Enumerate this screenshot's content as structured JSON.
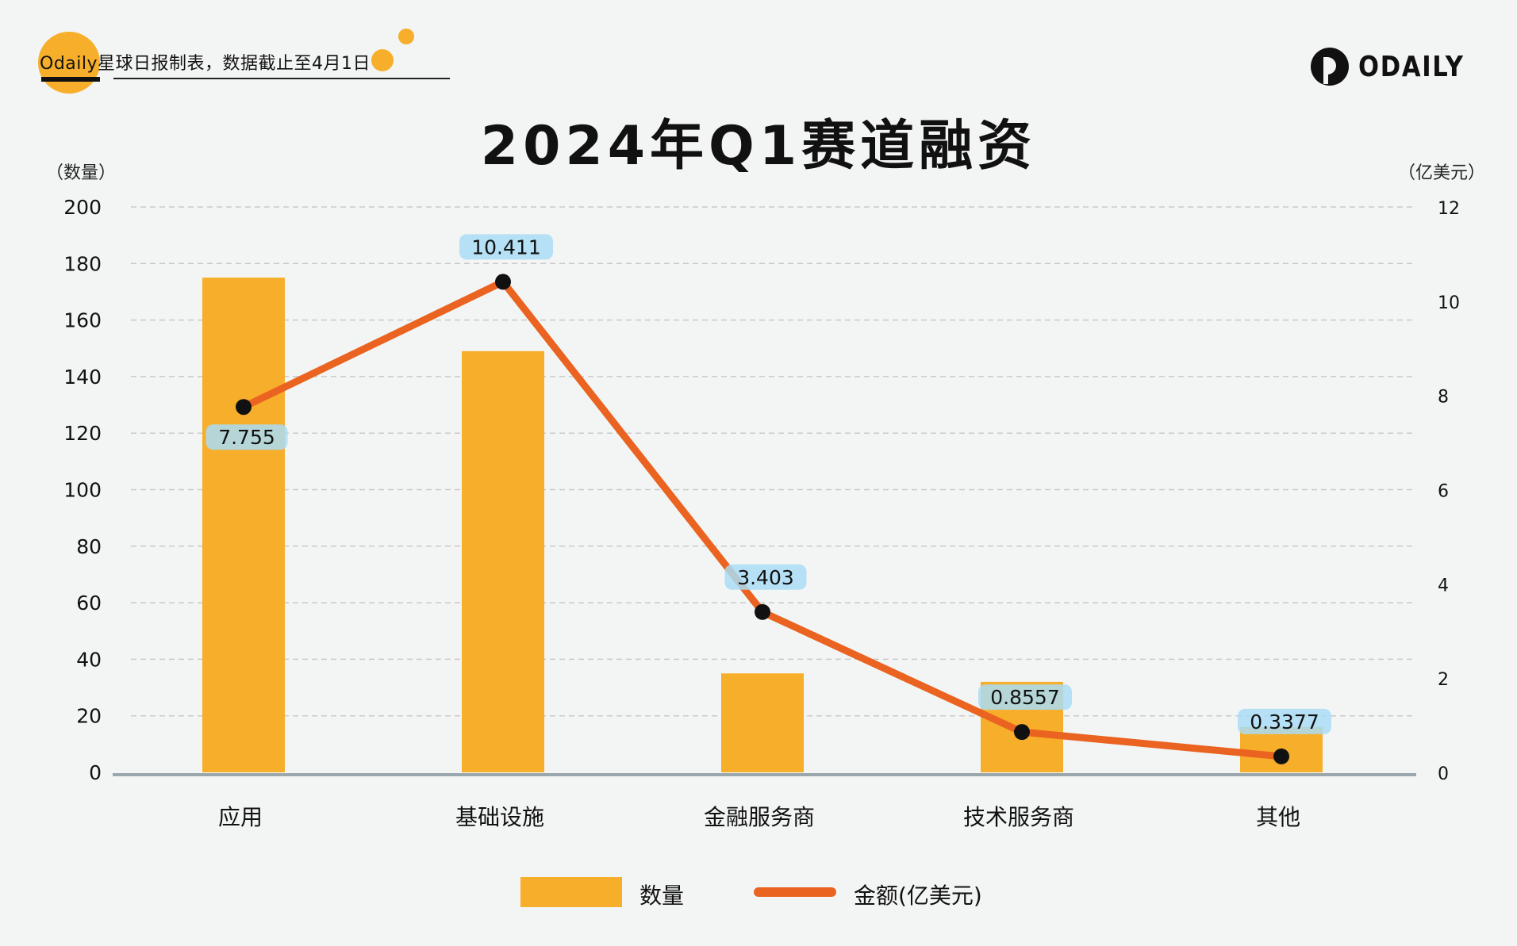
{
  "source_label": "Odaily星球日报制表，数据截止至4月1日",
  "brand": "ODAILY",
  "title": "2024年Q1赛道融资",
  "left_axis_unit": "（数量）",
  "right_axis_unit": "（亿美元）",
  "colors": {
    "bar": "#f7ae2a",
    "line": "#ea6320",
    "point": "#111111",
    "label_bg": "#a9dcf5",
    "grid": "#c9c9c9",
    "baseline": "#9aa7ad"
  },
  "chart_data": {
    "type": "bar",
    "categories": [
      "应用",
      "基础设施",
      "金融服务商",
      "技术服务商",
      "其他"
    ],
    "series": [
      {
        "name": "数量",
        "type": "bar",
        "axis": "left",
        "values": [
          175,
          149,
          35,
          32,
          16
        ]
      },
      {
        "name": "金额(亿美元)",
        "type": "line",
        "axis": "right",
        "values": [
          7.755,
          10.411,
          3.403,
          0.8557,
          0.3377
        ],
        "labels": [
          "7.755",
          "10.411",
          "3.403",
          "0.8557",
          "0.3377"
        ]
      }
    ],
    "left_axis": {
      "min": 0,
      "max": 200,
      "ticks": [
        "0",
        "20",
        "40",
        "60",
        "80",
        "100",
        "120",
        "140",
        "160",
        "180",
        "200"
      ]
    },
    "right_axis": {
      "min": 0,
      "max": 12,
      "ticks": [
        "0",
        "2",
        "4",
        "6",
        "8",
        "10",
        "12"
      ]
    },
    "grid": true,
    "legend_position": "bottom"
  },
  "legend": {
    "bar_label": "数量",
    "line_label": "金额(亿美元)"
  }
}
